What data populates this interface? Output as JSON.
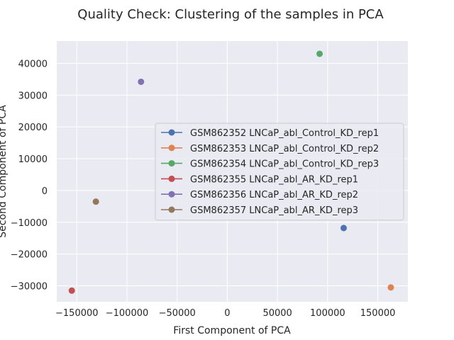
{
  "chart_data": {
    "type": "scatter",
    "title": "Quality Check: Clustering of the samples in PCA",
    "xlabel": "First Component of PCA",
    "ylabel": "Second Component of PCA",
    "xlim": [
      -170000,
      180000
    ],
    "ylim": [
      -35000,
      47000
    ],
    "xticks": [
      -150000,
      -100000,
      -50000,
      0,
      50000,
      100000,
      150000
    ],
    "yticks": [
      -30000,
      -20000,
      -10000,
      0,
      10000,
      20000,
      30000,
      40000
    ],
    "grid": true,
    "legend_position": "right",
    "series": [
      {
        "name": "GSM862352 LNCaP_abl_Control_KD_rep1",
        "color": "#4c72b0",
        "x": [
          116000
        ],
        "y": [
          -11800
        ]
      },
      {
        "name": "GSM862353 LNCaP_abl_Control_KD_rep2",
        "color": "#dd8452",
        "x": [
          163000
        ],
        "y": [
          -30500
        ]
      },
      {
        "name": "GSM862354 LNCaP_abl_Control_KD_rep3",
        "color": "#55a868",
        "x": [
          92000
        ],
        "y": [
          43000
        ]
      },
      {
        "name": "GSM862355 LNCaP_abl_AR_KD_rep1",
        "color": "#c44e52",
        "x": [
          -155000
        ],
        "y": [
          -31500
        ]
      },
      {
        "name": "GSM862356 LNCaP_abl_AR_KD_rep2",
        "color": "#8172b3",
        "x": [
          -86000
        ],
        "y": [
          34200
        ]
      },
      {
        "name": "GSM862357 LNCaP_abl_AR_KD_rep3",
        "color": "#937860",
        "x": [
          -131000
        ],
        "y": [
          -3500
        ]
      }
    ]
  }
}
